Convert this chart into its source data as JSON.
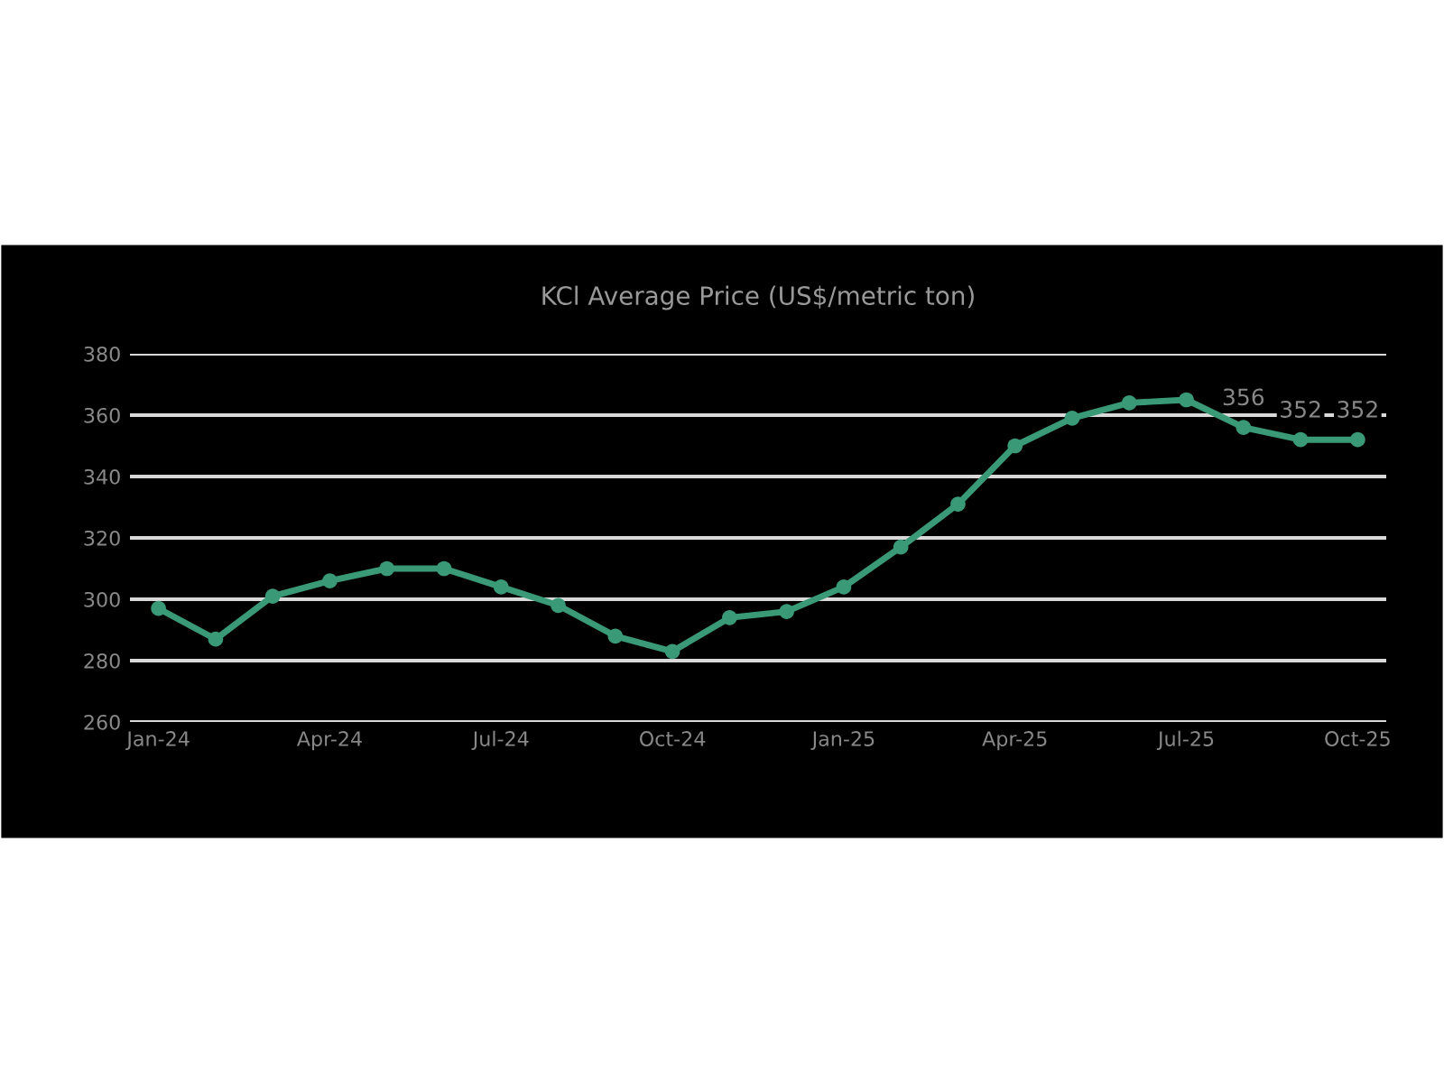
{
  "chart_data": {
    "type": "line",
    "title": "KCl Average Price (US$/metric ton)",
    "categories": [
      "Jan-24",
      null,
      null,
      "Apr-24",
      null,
      null,
      "Jul-24",
      null,
      null,
      "Oct-24",
      null,
      null,
      "Jan-25",
      null,
      null,
      "Apr-25",
      null,
      null,
      "Jul-25",
      null,
      null,
      "Oct-25"
    ],
    "series": [
      {
        "color": "#3a9a78",
        "values": [
          297,
          287,
          301,
          306,
          310,
          310,
          304,
          298,
          288,
          283,
          294,
          296,
          304,
          317,
          331,
          350,
          359,
          364,
          365,
          356,
          352,
          352
        ],
        "value_labels": [
          null,
          null,
          null,
          null,
          null,
          null,
          null,
          null,
          null,
          null,
          null,
          null,
          null,
          null,
          null,
          null,
          null,
          null,
          null,
          "356",
          "352",
          "352"
        ]
      }
    ],
    "ylim": [
      260,
      380
    ],
    "yticks": [
      260,
      280,
      300,
      320,
      340,
      360,
      380
    ],
    "grid": "y",
    "marker": "circle",
    "line_style": "solid",
    "legend": false
  }
}
